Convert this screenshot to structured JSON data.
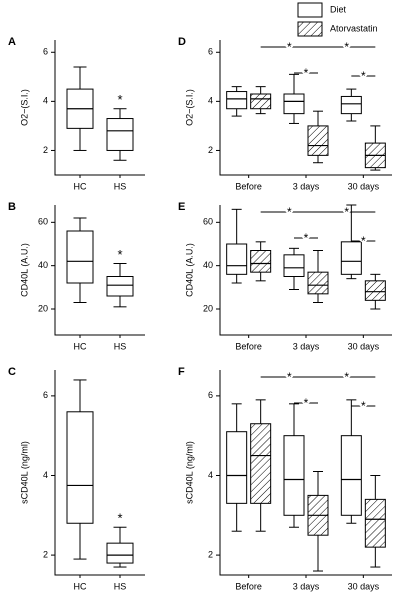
{
  "chart_data": [
    {
      "type": "box",
      "panel": "A",
      "y_label": "O2−(S.I.)",
      "categories": [
        "HC",
        "HS"
      ],
      "ylim": [
        1,
        6.5
      ],
      "yticks": [
        2,
        4,
        6
      ],
      "series": [
        {
          "color": "#ffffff",
          "boxes": [
            {
              "min": 2.0,
              "q1": 2.9,
              "median": 3.7,
              "q3": 4.5,
              "max": 5.4
            },
            {
              "min": 1.6,
              "q1": 2.0,
              "median": 2.8,
              "q3": 3.3,
              "max": 3.7
            }
          ]
        }
      ],
      "annotations": [
        null,
        "*"
      ]
    },
    {
      "type": "box",
      "panel": "B",
      "y_label": "CD40L (A.U.)",
      "categories": [
        "HC",
        "HS"
      ],
      "ylim": [
        8,
        68
      ],
      "yticks": [
        20,
        40,
        60
      ],
      "series": [
        {
          "color": "#ffffff",
          "boxes": [
            {
              "min": 23,
              "q1": 32,
              "median": 42,
              "q3": 56,
              "max": 62
            },
            {
              "min": 21,
              "q1": 26,
              "median": 31,
              "q3": 35,
              "max": 41
            }
          ]
        }
      ],
      "annotations": [
        null,
        "*"
      ]
    },
    {
      "type": "box",
      "panel": "C",
      "y_label": "sCD40L (ng/ml)",
      "categories": [
        "HC",
        "HS"
      ],
      "ylim": [
        1.5,
        6.65
      ],
      "yticks": [
        2,
        4,
        6
      ],
      "series": [
        {
          "color": "#ffffff",
          "boxes": [
            {
              "min": 1.9,
              "q1": 2.8,
              "median": 3.75,
              "q3": 5.6,
              "max": 6.4
            },
            {
              "min": 1.7,
              "q1": 1.8,
              "median": 2.0,
              "q3": 2.3,
              "max": 2.7
            }
          ]
        }
      ],
      "annotations": [
        null,
        "*"
      ]
    },
    {
      "type": "box",
      "panel": "D",
      "y_label": "O2−(S.I.)",
      "categories": [
        "Before",
        "3 days",
        "30 days"
      ],
      "ylim": [
        1,
        6.5
      ],
      "yticks": [
        2,
        4,
        6
      ],
      "series": [
        {
          "name": "Diet",
          "color": "#ffffff",
          "hatch": false,
          "boxes": [
            {
              "min": 3.4,
              "q1": 3.7,
              "median": 4.1,
              "q3": 4.4,
              "max": 4.6
            },
            {
              "min": 3.1,
              "q1": 3.5,
              "median": 4.0,
              "q3": 4.3,
              "max": 5.1
            },
            {
              "min": 3.2,
              "q1": 3.5,
              "median": 3.9,
              "q3": 4.2,
              "max": 4.5
            }
          ]
        },
        {
          "name": "Atorvastatin",
          "color": "#ffffff",
          "hatch": true,
          "boxes": [
            {
              "min": 3.5,
              "q1": 3.7,
              "median": 4.1,
              "q3": 4.3,
              "max": 4.6
            },
            {
              "min": 1.5,
              "q1": 1.8,
              "median": 2.2,
              "q3": 3.0,
              "max": 3.6
            },
            {
              "min": 1.2,
              "q1": 1.3,
              "median": 1.8,
              "q3": 2.3,
              "max": 3.0
            }
          ]
        }
      ],
      "brackets": [
        {
          "label": "*",
          "from": [
            0,
            1
          ],
          "to": [
            1,
            1
          ]
        },
        {
          "label": "*",
          "from": [
            1,
            1
          ],
          "to": [
            2,
            1
          ]
        },
        {
          "label": "*",
          "from": [
            1,
            0
          ],
          "to": [
            1,
            1
          ]
        },
        {
          "label": "*",
          "from": [
            2,
            0
          ],
          "to": [
            2,
            1
          ]
        }
      ]
    },
    {
      "type": "box",
      "panel": "E",
      "y_label": "CD40L (A.U.)",
      "categories": [
        "Before",
        "3 days",
        "30 days"
      ],
      "ylim": [
        8,
        68
      ],
      "yticks": [
        20,
        40,
        60
      ],
      "series": [
        {
          "color": "#ffffff",
          "hatch": false,
          "boxes": [
            {
              "min": 32,
              "q1": 36,
              "median": 40,
              "q3": 50,
              "max": 66
            },
            {
              "min": 29,
              "q1": 35,
              "median": 39,
              "q3": 45,
              "max": 48
            },
            {
              "min": 34,
              "q1": 36,
              "median": 42,
              "q3": 51,
              "max": 68
            }
          ]
        },
        {
          "color": "#ffffff",
          "hatch": true,
          "boxes": [
            {
              "min": 33,
              "q1": 37,
              "median": 41,
              "q3": 47,
              "max": 51
            },
            {
              "min": 23,
              "q1": 27,
              "median": 31,
              "q3": 37,
              "max": 47
            },
            {
              "min": 20,
              "q1": 24,
              "median": 28,
              "q3": 33,
              "max": 36
            }
          ]
        }
      ],
      "brackets": [
        {
          "label": "*",
          "from": [
            0,
            1
          ],
          "to": [
            1,
            1
          ]
        },
        {
          "label": "*",
          "from": [
            1,
            1
          ],
          "to": [
            2,
            1
          ]
        },
        {
          "label": "*",
          "from": [
            1,
            0
          ],
          "to": [
            1,
            1
          ]
        },
        {
          "label": "*",
          "from": [
            2,
            0
          ],
          "to": [
            2,
            1
          ]
        }
      ]
    },
    {
      "type": "box",
      "panel": "F",
      "y_label": "sCD40L (ng/ml)",
      "categories": [
        "Before",
        "3 days",
        "30 days"
      ],
      "ylim": [
        1.5,
        6.65
      ],
      "yticks": [
        2,
        4,
        6
      ],
      "series": [
        {
          "color": "#ffffff",
          "hatch": false,
          "boxes": [
            {
              "min": 2.6,
              "q1": 3.3,
              "median": 4.0,
              "q3": 5.1,
              "max": 5.8
            },
            {
              "min": 2.7,
              "q1": 3.0,
              "median": 3.9,
              "q3": 5.0,
              "max": 5.8
            },
            {
              "min": 2.8,
              "q1": 3.0,
              "median": 3.9,
              "q3": 5.0,
              "max": 5.9
            }
          ]
        },
        {
          "color": "#ffffff",
          "hatch": true,
          "boxes": [
            {
              "min": 2.6,
              "q1": 3.3,
              "median": 4.5,
              "q3": 5.3,
              "max": 5.9
            },
            {
              "min": 1.6,
              "q1": 2.5,
              "median": 3.0,
              "q3": 3.5,
              "max": 4.1
            },
            {
              "min": 1.7,
              "q1": 2.2,
              "median": 2.9,
              "q3": 3.4,
              "max": 4.0
            }
          ]
        }
      ],
      "brackets": [
        {
          "label": "*",
          "from": [
            0,
            1
          ],
          "to": [
            1,
            1
          ]
        },
        {
          "label": "*",
          "from": [
            1,
            1
          ],
          "to": [
            2,
            1
          ]
        },
        {
          "label": "*",
          "from": [
            1,
            0
          ],
          "to": [
            1,
            1
          ]
        },
        {
          "label": "*",
          "from": [
            2,
            0
          ],
          "to": [
            2,
            1
          ]
        }
      ]
    }
  ]
}
